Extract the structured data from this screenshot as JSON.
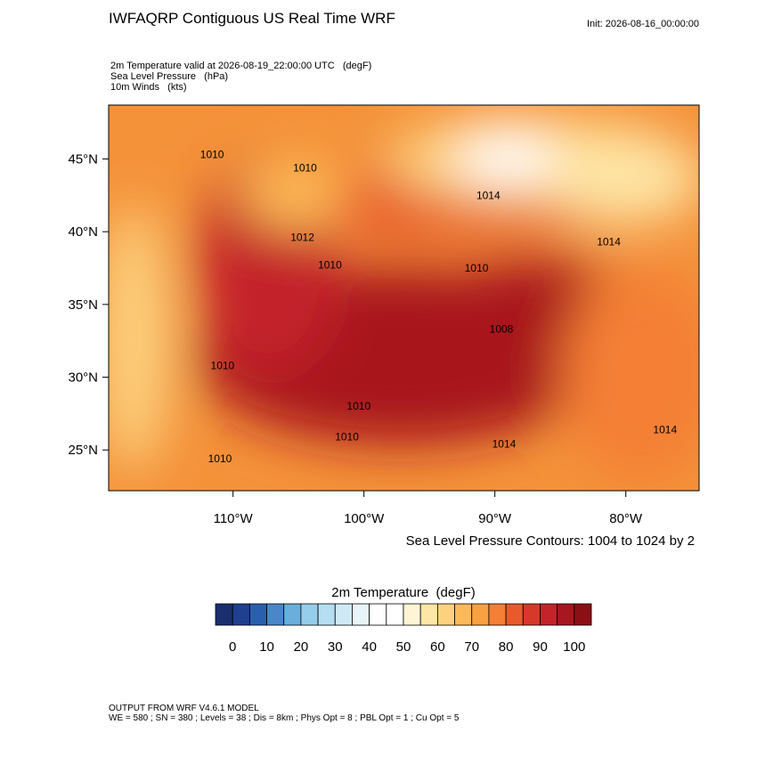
{
  "header": {
    "title": "IWFAQRP Contiguous US Real Time WRF",
    "init": "Init: 2026-08-16_00:00:00"
  },
  "fields": [
    "2m Temperature valid at 2026-08-19_22:00:00 UTC   (degF)",
    "Sea Level Pressure   (hPa)",
    "10m Winds   (kts)"
  ],
  "map": {
    "xlim": [
      -119.5,
      -74.4
    ],
    "ylim": [
      22.2,
      48.7
    ],
    "xticks": [
      {
        "value": -110,
        "label": "110°W"
      },
      {
        "value": -100,
        "label": "100°W"
      },
      {
        "value": -90,
        "label": "90°W"
      },
      {
        "value": -80,
        "label": "80°W"
      }
    ],
    "yticks": [
      {
        "value": 25,
        "label": "25°N"
      },
      {
        "value": 30,
        "label": "30°N"
      },
      {
        "value": 35,
        "label": "35°N"
      },
      {
        "value": 40,
        "label": "40°N"
      },
      {
        "value": 45,
        "label": "45°N"
      }
    ],
    "contour_labels": [
      {
        "label": "1010",
        "lon": -111.6,
        "lat": 45.3
      },
      {
        "label": "1010",
        "lon": -104.5,
        "lat": 44.4
      },
      {
        "label": "1012",
        "lon": -104.7,
        "lat": 39.6
      },
      {
        "label": "1010",
        "lon": -102.6,
        "lat": 37.7
      },
      {
        "label": "1014",
        "lon": -90.5,
        "lat": 42.5
      },
      {
        "label": "1014",
        "lon": -81.3,
        "lat": 39.3
      },
      {
        "label": "1010",
        "lon": -91.4,
        "lat": 37.5
      },
      {
        "label": "1008",
        "lon": -89.5,
        "lat": 33.3
      },
      {
        "label": "1010",
        "lon": -110.8,
        "lat": 30.8
      },
      {
        "label": "1010",
        "lon": -100.4,
        "lat": 28.0
      },
      {
        "label": "1010",
        "lon": -101.3,
        "lat": 25.9
      },
      {
        "label": "1014",
        "lon": -89.3,
        "lat": 25.4
      },
      {
        "label": "1014",
        "lon": -77.0,
        "lat": 26.4
      },
      {
        "label": "1010",
        "lon": -111.0,
        "lat": 24.4
      }
    ]
  },
  "contour_note": "Sea Level Pressure Contours: 1004 to 1024 by 2",
  "colorbar": {
    "title": "2m Temperature  (degF)",
    "lim": [
      -5,
      105
    ],
    "ticks": [
      0,
      10,
      20,
      30,
      40,
      50,
      60,
      70,
      80,
      90,
      100
    ],
    "colors": [
      "#1b2f6e",
      "#1f3f8f",
      "#2a5fb0",
      "#4a86c8",
      "#6aaedc",
      "#96cdea",
      "#b5def2",
      "#cfe9f7",
      "#e8f4fa",
      "#ffffff",
      "#ffffff",
      "#fff5d6",
      "#fee6a6",
      "#fdd27f",
      "#fdb957",
      "#f9a040",
      "#f47f35",
      "#e85a2c",
      "#d6392a",
      "#c4232a",
      "#a8161f",
      "#8a1015"
    ]
  },
  "footer": [
    "OUTPUT FROM WRF V4.6.1 MODEL",
    "WE = 580 ; SN = 380 ; Levels = 38 ; Dis = 8km ; Phys Opt = 8 ; PBL Opt = 1 ; Cu Opt = 5"
  ]
}
